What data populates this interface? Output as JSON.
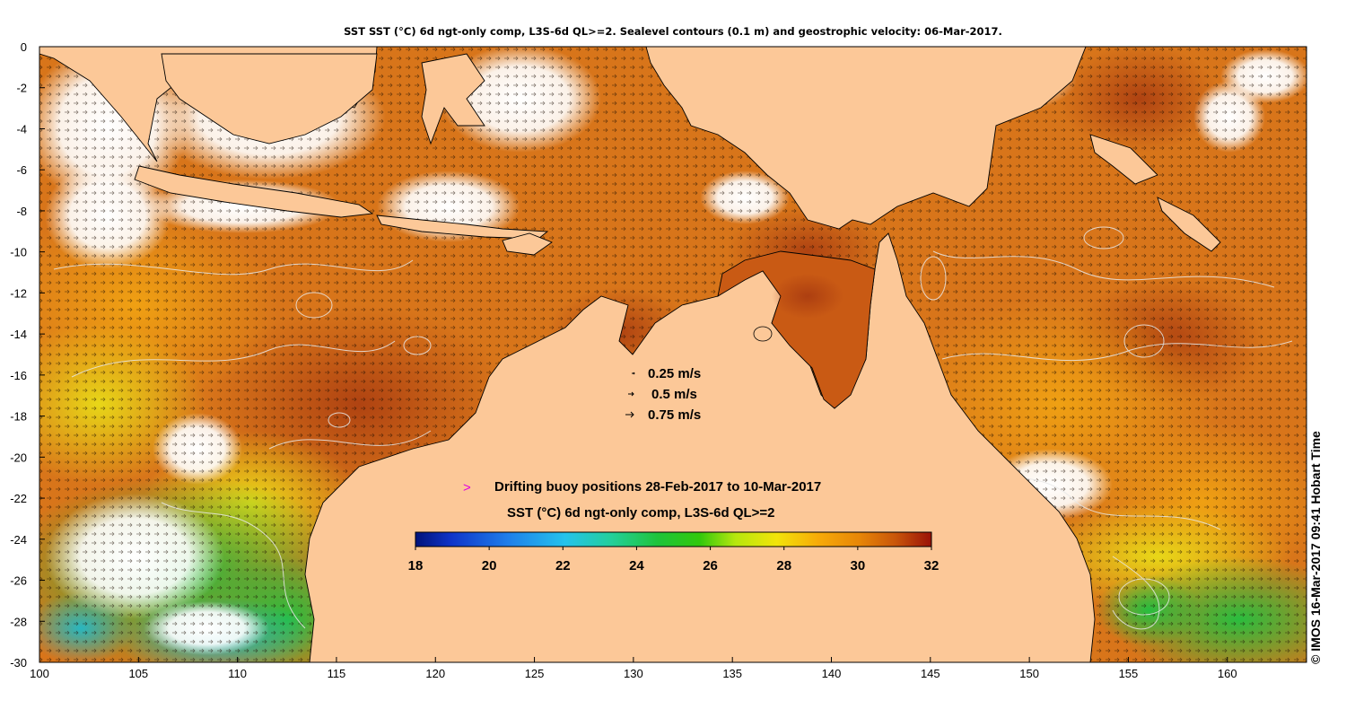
{
  "title": "SST SST (°C) 6d ngt-only comp, L3S-6d QL>=2. Sealevel contours (0.1 m) and geostrophic velocity: 06-Mar-2017.",
  "credit": "© IMOS 16-Mar-2017 09:41 Hobart Time",
  "axes": {
    "x_ticks": [
      "100",
      "105",
      "110",
      "115",
      "120",
      "125",
      "130",
      "135",
      "140",
      "145",
      "150",
      "155",
      "160"
    ],
    "y_ticks": [
      "0",
      "-2",
      "-4",
      "-6",
      "-8",
      "-10",
      "-12",
      "-14",
      "-16",
      "-18",
      "-20",
      "-22",
      "-24",
      "-26",
      "-28",
      "-30"
    ],
    "lon_range": [
      100,
      164
    ],
    "lat_range": [
      -30,
      0
    ]
  },
  "velocity_legend": [
    {
      "label": "0.25 m/s"
    },
    {
      "label": "0.5 m/s"
    },
    {
      "label": "0.75 m/s"
    }
  ],
  "buoy_legend": {
    "symbol": ">",
    "label": "Drifting buoy positions 28-Feb-2017 to 10-Mar-2017",
    "symbol_color": "#e000e0"
  },
  "colorbar": {
    "title": "SST (°C) 6d ngt-only comp, L3S-6d QL>=2",
    "ticks": [
      "18",
      "20",
      "22",
      "24",
      "26",
      "28",
      "30",
      "32"
    ],
    "range": [
      18,
      32
    ]
  },
  "colors": {
    "land": "#fcc898",
    "ocean_warm": "#d66f12",
    "ocean_hot": "#b3420e",
    "ocean_mid": "#e98d10",
    "cloud": "#ffffff",
    "contour": "#e6e6e6"
  }
}
